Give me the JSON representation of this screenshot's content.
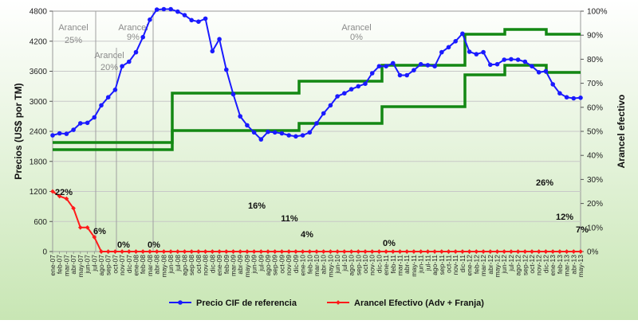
{
  "chart_data": {
    "type": "line",
    "xlabel": "",
    "ylabel_left": "Precios (US$ por TM)",
    "ylabel_right": "Arancel efectivo",
    "ylim_left": [
      0,
      4800
    ],
    "ylim_right": [
      0,
      100
    ],
    "yticks_left": [
      "0",
      "600",
      "1200",
      "1800",
      "2400",
      "3000",
      "3600",
      "4200",
      "4800"
    ],
    "yticks_right": [
      "0%",
      "10%",
      "20%",
      "30%",
      "40%",
      "50%",
      "60%",
      "70%",
      "80%",
      "90%",
      "100%"
    ],
    "categories": [
      "ene-07",
      "feb-07",
      "mar-07",
      "abr-07",
      "may-07",
      "jun-07",
      "jul-07",
      "ago-07",
      "sep-07",
      "oct-07",
      "nov-07",
      "dic-07",
      "ene-08",
      "feb-08",
      "mar-08",
      "abr-08",
      "may-08",
      "jun-08",
      "jul-08",
      "ago-08",
      "sep-08",
      "oct-08",
      "nov-08",
      "dic-08",
      "ene-09",
      "feb-09",
      "mar-09",
      "abr-09",
      "may-09",
      "jun-09",
      "jul-09",
      "ago-09",
      "sep-09",
      "oct-09",
      "nov-09",
      "dic-09",
      "ene-10",
      "feb-10",
      "mar-10",
      "abr-10",
      "may-10",
      "jun-10",
      "jul-10",
      "ago-10",
      "sep-10",
      "oct-10",
      "nov-10",
      "dic-10",
      "ene-11",
      "feb-11",
      "mar-11",
      "abr-11",
      "may-11",
      "jun-11",
      "jul-11",
      "ago-11",
      "sep-11",
      "oct-11",
      "nov-11",
      "dic-11",
      "ene-12",
      "feb-12",
      "mar-12",
      "abr-12",
      "may-12",
      "jun-12",
      "jul-12",
      "ago-12",
      "sep-12",
      "oct-12",
      "nov-12",
      "dic-12",
      "ene-13",
      "feb-13",
      "mar-13",
      "abr-13",
      "may-13"
    ],
    "series": [
      {
        "name": "Precio CIF de referencia",
        "axis": "left",
        "color": "#1a1aff",
        "values": [
          2320,
          2360,
          2350,
          2430,
          2560,
          2570,
          2680,
          2920,
          3080,
          3230,
          3700,
          3790,
          3980,
          4280,
          4630,
          4830,
          4840,
          4840,
          4790,
          4720,
          4620,
          4590,
          4650,
          4000,
          4240,
          3630,
          3140,
          2700,
          2520,
          2380,
          2240,
          2390,
          2380,
          2360,
          2320,
          2300,
          2320,
          2380,
          2560,
          2760,
          2920,
          3100,
          3160,
          3240,
          3300,
          3350,
          3560,
          3700,
          3700,
          3760,
          3520,
          3520,
          3620,
          3740,
          3720,
          3700,
          3980,
          4080,
          4200,
          4350,
          3990,
          3940,
          3980,
          3730,
          3740,
          3830,
          3840,
          3830,
          3790,
          3700,
          3580,
          3600,
          3340,
          3160,
          3080,
          3060,
          3070
        ]
      },
      {
        "name": "Arancel Efectivo (Adv + Franja)",
        "axis": "right",
        "color": "#ff1a1a",
        "values": [
          25,
          23,
          22,
          18,
          10,
          10,
          6,
          0,
          0,
          0,
          0,
          0,
          0,
          0,
          0,
          0,
          0,
          0,
          0,
          0,
          0,
          0,
          0,
          0,
          0,
          0,
          0,
          0,
          0,
          0,
          0,
          0,
          0,
          0,
          0,
          0,
          0,
          0,
          0,
          0,
          0,
          0,
          0,
          0,
          0,
          0,
          0,
          0,
          0,
          0,
          0,
          0,
          0,
          0,
          0,
          0,
          0,
          0,
          0,
          0,
          0,
          0,
          0,
          0,
          0,
          0,
          0,
          0,
          0,
          0,
          0,
          0,
          0,
          0,
          0,
          0,
          0
        ]
      }
    ],
    "legend": {
      "position": "bottom",
      "items": [
        {
          "label": "Precio CIF de referencia",
          "color": "#1a1aff"
        },
        {
          "label": "Arancel Efectivo (Adv + Franja)",
          "color": "#ff1a1a"
        }
      ]
    },
    "region_labels": [
      {
        "text": "Arancel\n25%"
      },
      {
        "text": "Arancel\n20%"
      },
      {
        "text": "Arancel\n9%"
      },
      {
        "text": "Arancel\n0%"
      }
    ],
    "data_labels": [
      "22%",
      "6%",
      "0%",
      "0%",
      "16%",
      "11%",
      "4%",
      "0%",
      "26%",
      "12%",
      "7%"
    ],
    "band_series_color": "#138813",
    "grid": true
  }
}
